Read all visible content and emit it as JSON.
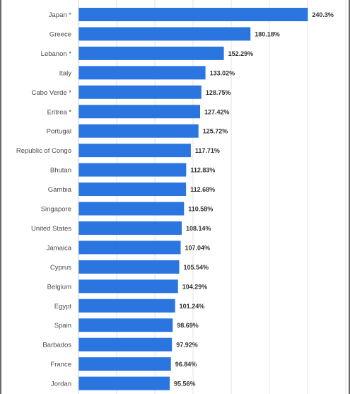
{
  "chart_data": {
    "type": "bar",
    "orientation": "horizontal",
    "categories": [
      "Japan *",
      "Greece",
      "Lebanon *",
      "Italy",
      "Cabo Verde *",
      "Eritrea *",
      "Portugal",
      "Republic of Congo",
      "Bhutan",
      "Gambia",
      "Singapore",
      "United States",
      "Jamaica",
      "Cyprus",
      "Belgium",
      "Egypt",
      "Spain",
      "Barbados",
      "France",
      "Jordan"
    ],
    "values": [
      240.3,
      180.18,
      152.29,
      133.02,
      128.75,
      127.42,
      125.72,
      117.71,
      112.83,
      112.68,
      110.58,
      108.14,
      107.04,
      105.54,
      104.29,
      101.24,
      98.69,
      97.92,
      96.84,
      95.56
    ],
    "value_labels": [
      "240.3%",
      "180.18%",
      "152.29%",
      "133.02%",
      "128.75%",
      "127.42%",
      "125.72%",
      "117.71%",
      "112.83%",
      "112.68%",
      "110.58%",
      "108.14%",
      "107.04%",
      "105.54%",
      "104.29%",
      "101.24%",
      "98.69%",
      "97.92%",
      "96.84%",
      "95.56%"
    ],
    "xlim": [
      0,
      280
    ],
    "grid": true,
    "bar_color": "#2a75e0"
  }
}
